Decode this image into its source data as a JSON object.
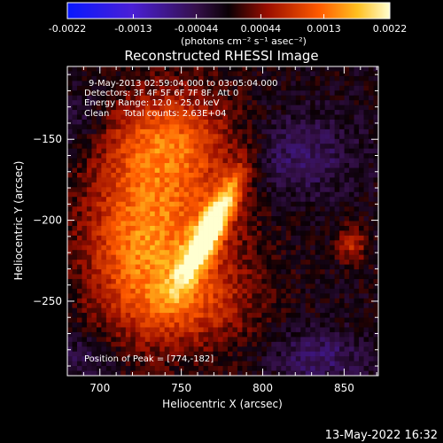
{
  "chart_data": {
    "type": "heatmap",
    "title": "Reconstructed RHESSI Image",
    "xlabel": "Heliocentric X (arcsec)",
    "ylabel": "Heliocentric Y (arcsec)",
    "xlim": [
      680,
      871
    ],
    "ylim": [
      -296,
      -105
    ],
    "x_ticks": [
      700,
      750,
      800,
      850
    ],
    "y_ticks": [
      -150,
      -200,
      -250
    ],
    "colorbar": {
      "ticks": [
        "-0.0022",
        "-0.0013",
        "-0.00044",
        "0.00044",
        "0.0013",
        "0.0022"
      ],
      "values": [
        -0.0022,
        -0.0013,
        -0.00044,
        0.00044,
        0.0013,
        0.0022
      ],
      "unit_label": "(photons cm⁻² s⁻¹ asec⁻²)",
      "colors": [
        "#1010ff",
        "#5a1abf",
        "#140010",
        "#a01000",
        "#ff7a00",
        "#ffff90",
        "#ffffff"
      ]
    },
    "annotations": [
      "9-May-2013 02:59:04.000 to 03:05:04.000",
      "Detectors: 3F 4F 5F 6F 7F 8F, Att 0",
      "Energy Range: 12.0 - 25.0 keV",
      "Clean     Total counts: 2.63E+04"
    ],
    "peak_label": "Position of Peak = [774,-182]",
    "peak": {
      "x": 774,
      "y": -182
    },
    "sources": [
      {
        "x": 768,
        "y": -205,
        "sx": 6,
        "sy": 26,
        "rot": 28,
        "amp": 1.0
      },
      {
        "x": 745,
        "y": -195,
        "sx": 30,
        "sy": 48,
        "rot": 0,
        "amp": 0.45
      },
      {
        "x": 720,
        "y": -215,
        "sx": 22,
        "sy": 35,
        "rot": 0,
        "amp": 0.35
      },
      {
        "x": 740,
        "y": -150,
        "sx": 28,
        "sy": 18,
        "rot": 0,
        "amp": 0.32
      },
      {
        "x": 755,
        "y": -250,
        "sx": 28,
        "sy": 18,
        "rot": 0,
        "amp": 0.3
      },
      {
        "x": 855,
        "y": -215,
        "sx": 6,
        "sy": 8,
        "rot": 0,
        "amp": 0.35
      }
    ],
    "negative_regions": [
      {
        "x": 820,
        "y": -160,
        "sx": 25,
        "sy": 18,
        "amp": -0.25
      },
      {
        "x": 835,
        "y": -285,
        "sx": 20,
        "sy": 12,
        "amp": -0.25
      },
      {
        "x": 690,
        "y": -285,
        "sx": 14,
        "sy": 12,
        "amp": -0.18
      },
      {
        "x": 690,
        "y": -140,
        "sx": 12,
        "sy": 15,
        "amp": -0.18
      }
    ]
  },
  "footer": {
    "timestamp": "13-May-2022 16:32"
  }
}
